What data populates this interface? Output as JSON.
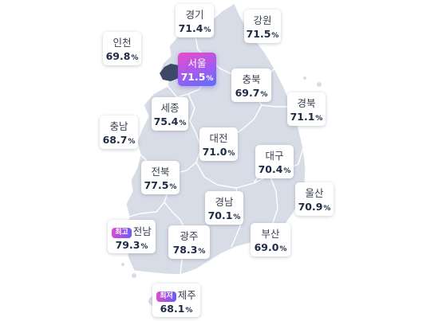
{
  "map": {
    "colors": {
      "land": "#d7dce6",
      "border": "#ffffff",
      "seoul_fill": "#3c4864",
      "highlight_gradient": [
        "#e84cc6",
        "#a25bf0",
        "#5b6ff8"
      ]
    },
    "unit": "%",
    "regions": [
      {
        "id": "gyeonggi",
        "name": "경기",
        "rate": "71.4"
      },
      {
        "id": "gangwon",
        "name": "강원",
        "rate": "71.5"
      },
      {
        "id": "incheon",
        "name": "인천",
        "rate": "69.8"
      },
      {
        "id": "seoul",
        "name": "서울",
        "rate": "71.5",
        "highlight": true
      },
      {
        "id": "chungbuk",
        "name": "충북",
        "rate": "69.7"
      },
      {
        "id": "gyeongbuk",
        "name": "경북",
        "rate": "71.1"
      },
      {
        "id": "sejong",
        "name": "세종",
        "rate": "75.4"
      },
      {
        "id": "chungnam",
        "name": "충남",
        "rate": "68.7"
      },
      {
        "id": "daejeon",
        "name": "대전",
        "rate": "71.0"
      },
      {
        "id": "daegu",
        "name": "대구",
        "rate": "70.4"
      },
      {
        "id": "jeonbuk",
        "name": "전북",
        "rate": "77.5"
      },
      {
        "id": "ulsan",
        "name": "울산",
        "rate": "70.9"
      },
      {
        "id": "gyeongnam",
        "name": "경남",
        "rate": "70.1"
      },
      {
        "id": "jeonnam",
        "name": "전남",
        "rate": "79.3",
        "badge": "최고"
      },
      {
        "id": "gwangju",
        "name": "광주",
        "rate": "78.3"
      },
      {
        "id": "busan",
        "name": "부산",
        "rate": "69.0"
      },
      {
        "id": "jeju",
        "name": "제주",
        "rate": "68.1",
        "badge": "최저"
      }
    ]
  }
}
